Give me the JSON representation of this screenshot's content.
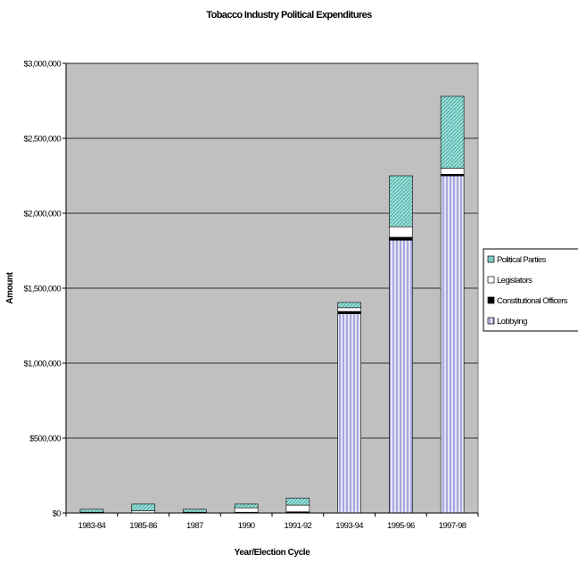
{
  "chart_data": {
    "type": "bar",
    "stacked": true,
    "title": "Tobacco Industry Political Expenditures",
    "xlabel": "Year/Election Cycle",
    "ylabel": "Amount",
    "ylim": [
      0,
      3000000
    ],
    "yticks": [
      {
        "value": 0,
        "label": "$0"
      },
      {
        "value": 500000,
        "label": "$500,000"
      },
      {
        "value": 1000000,
        "label": "$1,000,000"
      },
      {
        "value": 1500000,
        "label": "$1,500,000"
      },
      {
        "value": 2000000,
        "label": "$2,000,000"
      },
      {
        "value": 2500000,
        "label": "$2,500,000"
      },
      {
        "value": 3000000,
        "label": "$3,000,000"
      }
    ],
    "grid": true,
    "legend_position": "right",
    "categories": [
      "1983-84",
      "1985-86",
      "1987",
      "1990",
      "1991-92",
      "1993-94",
      "1995-96",
      "1997-98"
    ],
    "series": [
      {
        "name": "Lobbying",
        "key": "lobbying",
        "color": "#c8c8ee",
        "values": [
          0,
          0,
          0,
          0,
          0,
          1330000,
          1820000,
          2250000
        ]
      },
      {
        "name": "Constitutional Officers",
        "key": "officers",
        "color": "#000000",
        "values": [
          0,
          0,
          0,
          5000,
          8000,
          15000,
          20000,
          10000
        ]
      },
      {
        "name": "Legislators",
        "key": "legislators",
        "color": "#ffffff",
        "values": [
          5000,
          15000,
          5000,
          30000,
          45000,
          25000,
          70000,
          40000
        ]
      },
      {
        "name": "Political Parties",
        "key": "parties",
        "color": "#7fd6cf",
        "values": [
          20000,
          45000,
          20000,
          25000,
          47000,
          35000,
          340000,
          480000
        ]
      }
    ],
    "legend_order": [
      "parties",
      "legislators",
      "officers",
      "lobbying"
    ]
  },
  "colors": {
    "plot_background": "#c0c0c0",
    "gridline": "#000000"
  }
}
